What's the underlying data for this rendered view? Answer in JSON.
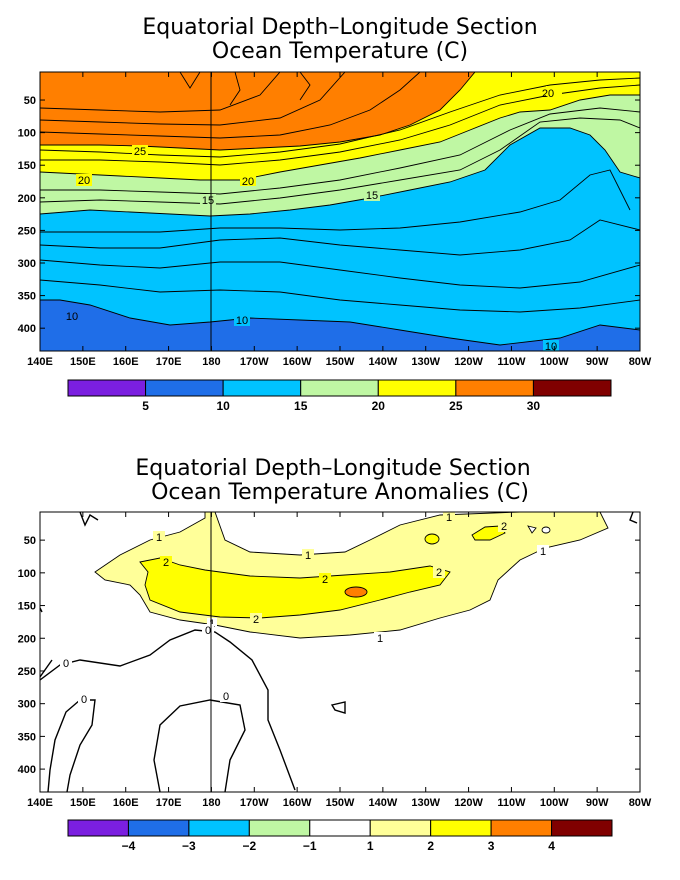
{
  "chart_data": [
    {
      "type": "heatmap",
      "title": "Equatorial Depth–Longitude Section",
      "subtitle": "Ocean Temperature (C)",
      "x_ticks": [
        "140E",
        "150E",
        "160E",
        "170E",
        "180",
        "170W",
        "160W",
        "150W",
        "140W",
        "130W",
        "120W",
        "110W",
        "100W",
        "90W",
        "80W"
      ],
      "y_ticks": [
        "50",
        "100",
        "150",
        "200",
        "250",
        "300",
        "350",
        "400"
      ],
      "y_values": [
        50,
        100,
        150,
        200,
        250,
        300,
        350,
        400
      ],
      "ylim": [
        435,
        7
      ],
      "colorbar": {
        "labels": [
          "5",
          "10",
          "15",
          "20",
          "25",
          "30"
        ],
        "colors": [
          "#7b1fe0",
          "#1f6ee8",
          "#00c3ff",
          "#bff7a3",
          "#ffff00",
          "#ff7f00",
          "#800000"
        ]
      },
      "contour_labels": [
        "20",
        "25",
        "20",
        "15",
        "20",
        "15",
        "10",
        "10",
        "10"
      ]
    },
    {
      "type": "heatmap",
      "title": "Equatorial Depth–Longitude Section",
      "subtitle": "Ocean Temperature Anomalies (C)",
      "x_ticks": [
        "140E",
        "150E",
        "160E",
        "170E",
        "180",
        "170W",
        "160W",
        "150W",
        "140W",
        "130W",
        "120W",
        "110W",
        "100W",
        "90W",
        "80W"
      ],
      "y_ticks": [
        "50",
        "100",
        "150",
        "200",
        "250",
        "300",
        "350",
        "400"
      ],
      "y_values": [
        50,
        100,
        150,
        200,
        250,
        300,
        350,
        400
      ],
      "ylim": [
        435,
        7
      ],
      "colorbar": {
        "labels": [
          "−4",
          "−3",
          "−2",
          "−1",
          "1",
          "2",
          "3",
          "4"
        ],
        "colors": [
          "#7b1fe0",
          "#1f6ee8",
          "#00c3ff",
          "#bff7a3",
          "#ffffff",
          "#ffff99",
          "#ffff00",
          "#ff7f00",
          "#800000"
        ]
      },
      "contour_labels": [
        "1",
        "1",
        "1",
        "2",
        "2",
        "2",
        "2",
        "1",
        "1",
        "1",
        "2",
        "0",
        "0",
        "0",
        "0"
      ]
    }
  ]
}
